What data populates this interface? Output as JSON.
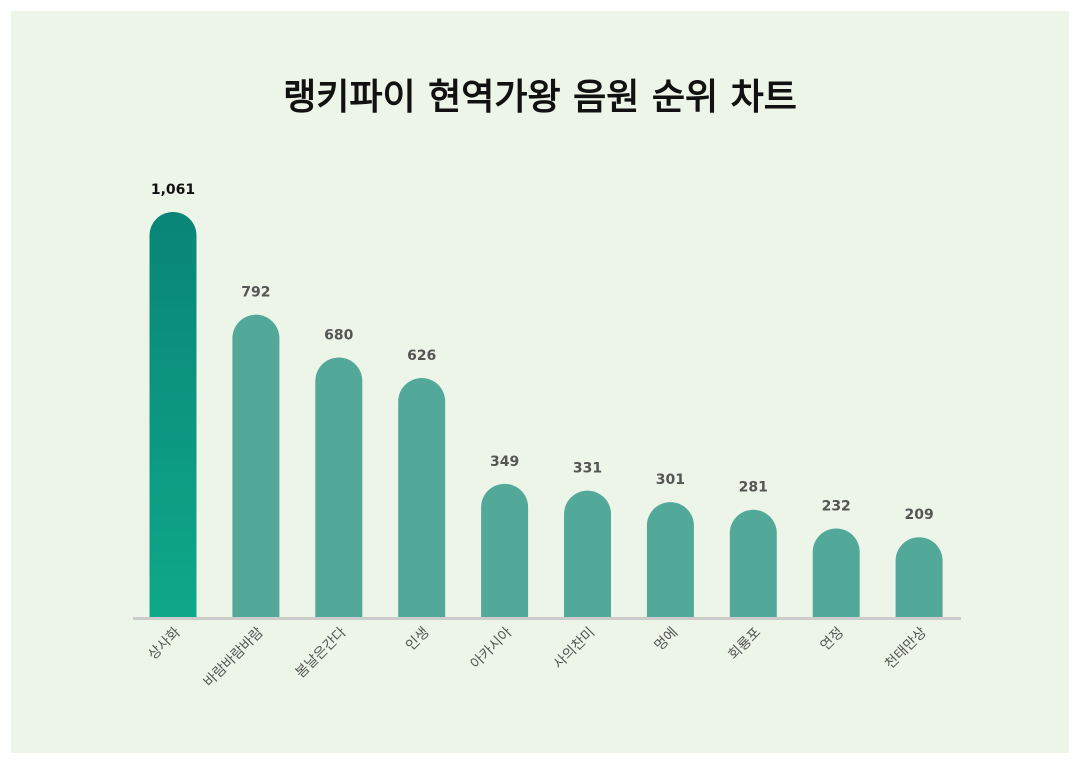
{
  "chart_data": {
    "type": "bar",
    "title": "랭키파이 현역가왕 음원 순위 차트",
    "categories": [
      "상사화",
      "바람바람바람",
      "봄날은간다",
      "인생",
      "아카시아",
      "사의찬미",
      "멍에",
      "회룡포",
      "연정",
      "천태만상"
    ],
    "values": [
      1061,
      792,
      680,
      626,
      349,
      331,
      301,
      281,
      232,
      209
    ],
    "value_labels": [
      "1,061",
      "792",
      "680",
      "626",
      "349",
      "331",
      "301",
      "281",
      "232",
      "209"
    ],
    "ylim": [
      0,
      1061
    ],
    "grid": false,
    "legend": "none",
    "highlight_index": 0
  },
  "colors": {
    "background": "#edf5e8",
    "bar": "#52a99a",
    "top_bar_start": "#0a8577",
    "top_bar_end": "#0ea88a",
    "baseline": "#cccccc",
    "top_label": "#111111",
    "value_label": "#555555",
    "category_label": "#555555"
  }
}
